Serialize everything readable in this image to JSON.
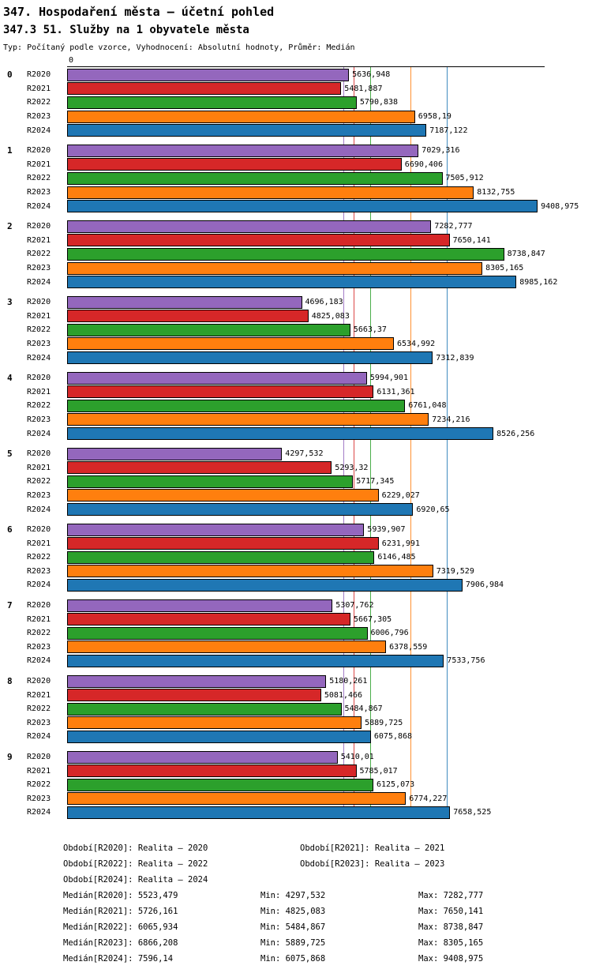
{
  "header": {
    "title": "347. Hospodaření města – účetní pohled",
    "subtitle": "347.3 51. Služby na 1 obyvatele města",
    "meta": "Typ: Počítaný podle vzorce, Vyhodnocení: Absolutní hodnoty, Průměr: Medián"
  },
  "chart_data": {
    "type": "bar",
    "orientation": "horizontal",
    "title": "347. Hospodaření města – účetní pohled",
    "subtitle": "347.3 51. Služby na 1 obyvatele města",
    "zero_label": "0",
    "xlim": [
      0,
      9550
    ],
    "grid": false,
    "legend_position": "bottom",
    "series": [
      {
        "name": "R2020",
        "color": "#9467bd",
        "median": "5523,479",
        "min": "4297,532",
        "max": "7282,777"
      },
      {
        "name": "R2021",
        "color": "#d62728",
        "median": "5726,161",
        "min": "4825,083",
        "max": "7650,141"
      },
      {
        "name": "R2022",
        "color": "#2ca02c",
        "median": "6065,934",
        "min": "5484,867",
        "max": "8738,847"
      },
      {
        "name": "R2023",
        "color": "#ff7f0e",
        "median": "6866,208",
        "min": "5889,725",
        "max": "8305,165"
      },
      {
        "name": "R2024",
        "color": "#1f77b4",
        "median": "7596,14",
        "min": "6075,868",
        "max": "9408,975"
      }
    ],
    "groups": [
      {
        "label": "0",
        "values": [
          "5636,948",
          "5481,887",
          "5790,838",
          "6958,19",
          "7187,122"
        ]
      },
      {
        "label": "1",
        "values": [
          "7029,316",
          "6690,406",
          "7505,912",
          "8132,755",
          "9408,975"
        ]
      },
      {
        "label": "2",
        "values": [
          "7282,777",
          "7650,141",
          "8738,847",
          "8305,165",
          "8985,162"
        ]
      },
      {
        "label": "3",
        "values": [
          "4696,183",
          "4825,083",
          "5663,37",
          "6534,992",
          "7312,839"
        ]
      },
      {
        "label": "4",
        "values": [
          "5994,901",
          "6131,361",
          "6761,048",
          "7234,216",
          "8526,256"
        ]
      },
      {
        "label": "5",
        "values": [
          "4297,532",
          "5293,32",
          "5717,345",
          "6229,027",
          "6920,65"
        ]
      },
      {
        "label": "6",
        "values": [
          "5939,907",
          "6231,991",
          "6146,485",
          "7319,529",
          "7906,984"
        ]
      },
      {
        "label": "7",
        "values": [
          "5307,762",
          "5667,305",
          "6006,796",
          "6378,559",
          "7533,756"
        ]
      },
      {
        "label": "8",
        "values": [
          "5180,261",
          "5081,466",
          "5484,867",
          "5889,725",
          "6075,868"
        ]
      },
      {
        "label": "9",
        "values": [
          "5410,01",
          "5785,017",
          "6125,073",
          "6774,227",
          "7658,525"
        ]
      }
    ]
  },
  "footer": {
    "legend_rows": [
      {
        "left": "Období[R2020]: Realita – 2020",
        "right": "Období[R2021]: Realita – 2021"
      },
      {
        "left": "Období[R2022]: Realita – 2022",
        "right": "Období[R2023]: Realita – 2023"
      },
      {
        "left": "Období[R2024]: Realita – 2024",
        "right": ""
      }
    ],
    "stats_rows": [
      {
        "median": "Medián[R2020]: 5523,479",
        "min": "Min: 4297,532",
        "max": "Max: 7282,777"
      },
      {
        "median": "Medián[R2021]: 5726,161",
        "min": "Min: 4825,083",
        "max": "Max: 7650,141"
      },
      {
        "median": "Medián[R2022]: 6065,934",
        "min": "Min: 5484,867",
        "max": "Max: 8738,847"
      },
      {
        "median": "Medián[R2023]: 6866,208",
        "min": "Min: 5889,725",
        "max": "Max: 8305,165"
      },
      {
        "median": "Medián[R2024]: 7596,14",
        "min": "Min: 6075,868",
        "max": "Max: 9408,975"
      }
    ]
  }
}
